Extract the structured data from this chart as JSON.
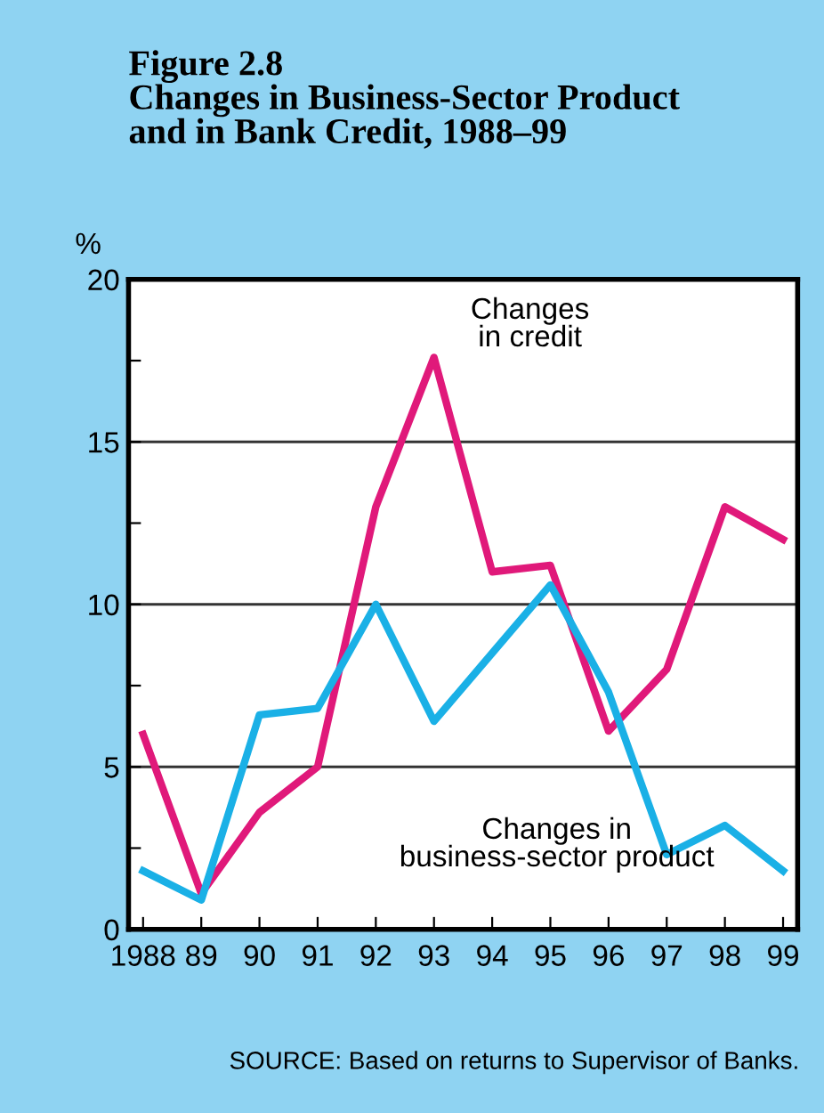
{
  "chart_data": {
    "type": "line",
    "title": "Figure 2.8\nChanges in Business-Sector Product\nand in Bank Credit, 1988–99",
    "ylabel": "%",
    "categories": [
      "1988",
      "89",
      "90",
      "91",
      "92",
      "93",
      "94",
      "95",
      "96",
      "97",
      "98",
      "99"
    ],
    "series": [
      {
        "name": "Changes\nin credit",
        "color": "#e0197a",
        "values": [
          6.0,
          1.1,
          3.6,
          5.0,
          13.0,
          17.6,
          11.0,
          11.2,
          6.1,
          8.0,
          13.0,
          12.0
        ]
      },
      {
        "name": "Changes in\nbusiness-sector product",
        "color": "#1ab0e6",
        "values": [
          1.8,
          0.9,
          6.6,
          6.8,
          10.0,
          6.4,
          8.5,
          10.6,
          7.3,
          2.3,
          3.2,
          1.8
        ]
      }
    ],
    "ylim": [
      0,
      20
    ],
    "yticks": [
      0,
      {
        "value": 2.5,
        "label": null
      },
      5,
      {
        "value": 7.5,
        "label": null
      },
      10,
      {
        "value": 12.5,
        "label": null
      },
      15,
      {
        "value": 17.5,
        "label": null
      },
      20
    ],
    "grid": "y",
    "legend": false,
    "marker": "none",
    "line_style": "solid",
    "annotations": [
      "SOURCE: Based on returns to Supervisor of Banks."
    ]
  }
}
